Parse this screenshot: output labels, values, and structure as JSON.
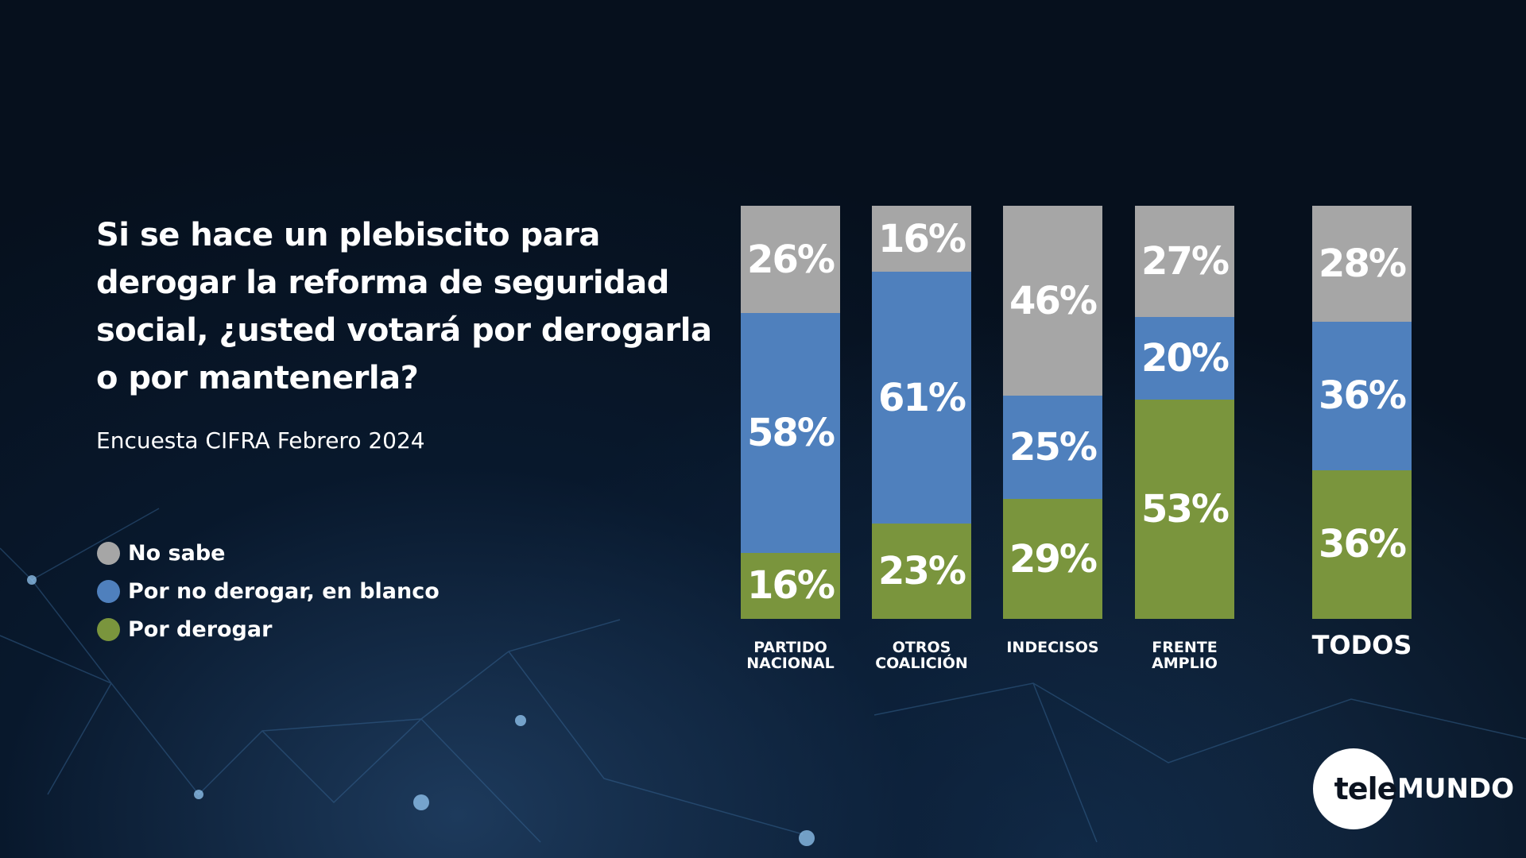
{
  "title": "Si se hace un plebiscito para derogar la reforma de seguridad social, ¿usted votará por derogarla o por mantenerla?",
  "subtitle": "Encuesta CIFRA Febrero 2024",
  "logo": {
    "tele": "tele",
    "mundo": "MUNDO"
  },
  "chart_data": {
    "type": "bar",
    "stacked": true,
    "title": "Si se hace un plebiscito para derogar la reforma de seguridad social, ¿usted votará por derogarla o por mantenerla?",
    "categories": [
      "PARTIDO NACIONAL",
      "OTROS COALICIÓN",
      "INDECISOS",
      "FRENTE AMPLIO",
      "TODOS"
    ],
    "series": [
      {
        "name": "Por derogar",
        "color": "#7a953d",
        "values": [
          16,
          23,
          29,
          53,
          36
        ]
      },
      {
        "name": "Por no derogar, en blanco",
        "color": "#4f80bd",
        "values": [
          58,
          61,
          25,
          20,
          36
        ]
      },
      {
        "name": "No sabe",
        "color": "#a6a6a6",
        "values": [
          26,
          16,
          46,
          27,
          28
        ]
      }
    ],
    "legend_order": [
      "No sabe",
      "Por no derogar, en blanco",
      "Por derogar"
    ],
    "legend_placement": "left",
    "ylim": [
      0,
      100
    ]
  }
}
